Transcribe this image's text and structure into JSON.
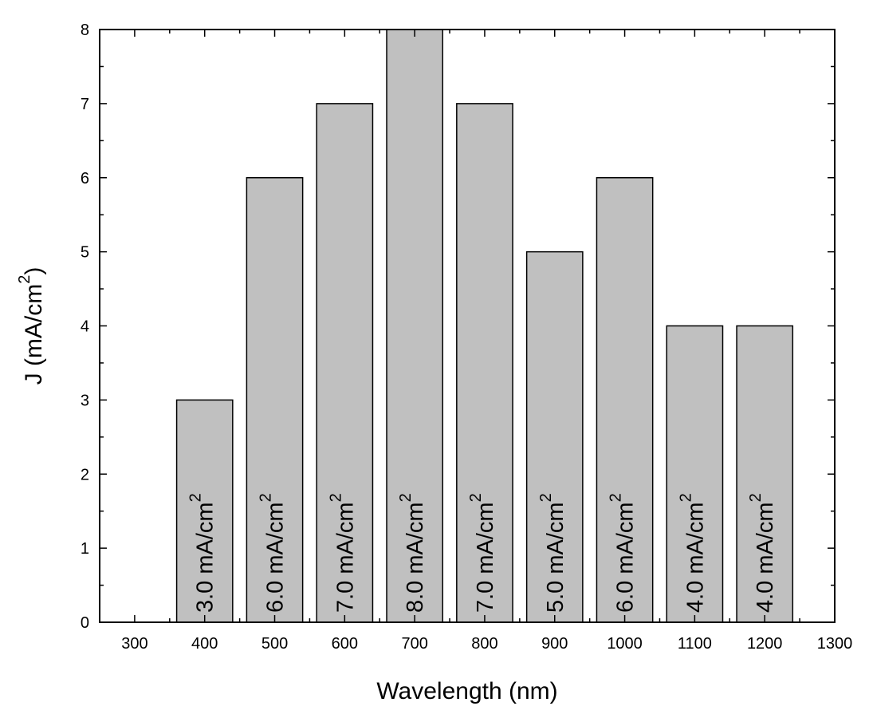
{
  "chart_data": {
    "type": "bar",
    "x": [
      400,
      500,
      600,
      700,
      800,
      900,
      1000,
      1100,
      1200
    ],
    "values": [
      3,
      6,
      7,
      8,
      7,
      5,
      6,
      4,
      4
    ],
    "bar_labels": [
      "3.0 mA/cm2",
      "6.0 mA/cm2",
      "7.0 mA/cm2",
      "8.0 mA/cm2",
      "7.0 mA/cm2",
      "5.0 mA/cm2",
      "6.0 mA/cm2",
      "4.0 mA/cm2",
      "4.0 mA/cm2"
    ],
    "bar_width": 80,
    "title": "",
    "xlabel": "Wavelength (nm)",
    "ylabel": "J (mA/cm2)",
    "xlim": [
      250,
      1300
    ],
    "ylim": [
      0,
      8
    ],
    "xticks": [
      300,
      400,
      500,
      600,
      700,
      800,
      900,
      1000,
      1100,
      1200,
      1300
    ],
    "yticks": [
      0,
      1,
      2,
      3,
      4,
      5,
      6,
      7,
      8
    ],
    "grid": false,
    "legend": "none",
    "bar_color": "#c0c0c0",
    "edge_color": "#000000"
  }
}
